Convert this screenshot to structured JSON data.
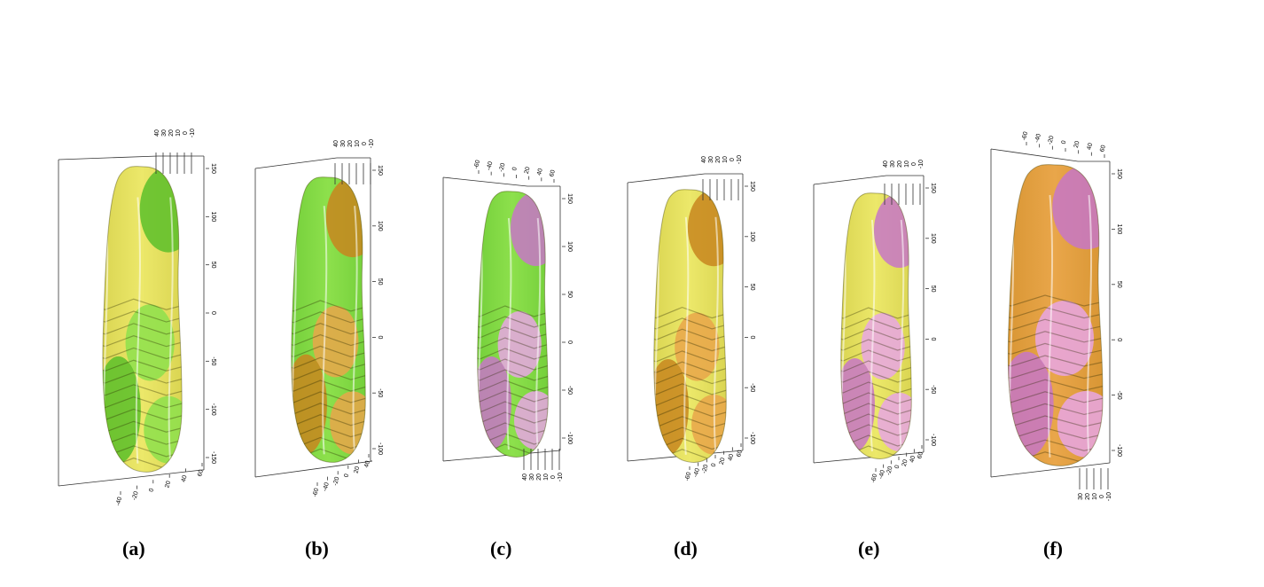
{
  "colors": {
    "yellow": "#c8c23a",
    "yellow_light": "#ece86a",
    "green": "#5cbf2a",
    "green_light": "#8de04c",
    "orange": "#c8861e",
    "orange_light": "#e9a64a",
    "pink": "#c777c7",
    "pink_light": "#e7a6e4",
    "frame": "#333333"
  },
  "panels": [
    {
      "caption": "(a)",
      "base": "yellow",
      "regions": [
        "green"
      ],
      "vert_ticks": [
        "150",
        "100",
        "50",
        "0",
        "-50",
        "-100",
        "-150"
      ],
      "depth_ticks": [
        "40",
        "30",
        "20",
        "10",
        "0",
        "-10"
      ],
      "width_ticks": [
        "-40",
        "-20",
        "0",
        "20",
        "40",
        "60"
      ]
    },
    {
      "caption": "(b)",
      "base": "green",
      "regions": [
        "orange"
      ],
      "vert_ticks": [
        "150",
        "100",
        "50",
        "0",
        "-50",
        "-100"
      ],
      "depth_ticks": [
        "40",
        "30",
        "20",
        "10",
        "0",
        "-10"
      ],
      "width_ticks": [
        "-60",
        "-40",
        "-20",
        "0",
        "20",
        "40"
      ]
    },
    {
      "caption": "(c)",
      "base": "green",
      "regions": [
        "pink"
      ],
      "vert_ticks": [
        "150",
        "100",
        "50",
        "0",
        "-50",
        "-100"
      ],
      "depth_ticks": [
        "40",
        "30",
        "20",
        "10",
        "0",
        "-10"
      ],
      "width_ticks": [
        "-60",
        "-40",
        "-20",
        "0",
        "20",
        "40",
        "60"
      ]
    },
    {
      "caption": "(d)",
      "base": "yellow",
      "regions": [
        "orange"
      ],
      "vert_ticks": [
        "150",
        "100",
        "50",
        "0",
        "-50",
        "-100"
      ],
      "depth_ticks": [
        "40",
        "30",
        "20",
        "10",
        "0",
        "-10"
      ],
      "width_ticks": [
        "-60",
        "-40",
        "-20",
        "0",
        "20",
        "40",
        "60"
      ]
    },
    {
      "caption": "(e)",
      "base": "yellow",
      "regions": [
        "pink"
      ],
      "vert_ticks": [
        "150",
        "100",
        "50",
        "0",
        "-50",
        "-100"
      ],
      "depth_ticks": [
        "40",
        "30",
        "20",
        "10",
        "0",
        "-10"
      ],
      "width_ticks": [
        "-60",
        "-40",
        "-20",
        "0",
        "20",
        "40",
        "60"
      ]
    },
    {
      "caption": "(f)",
      "base": "orange",
      "regions": [
        "pink"
      ],
      "vert_ticks": [
        "150",
        "100",
        "50",
        "0",
        "-50",
        "-100"
      ],
      "depth_ticks": [
        "30",
        "20",
        "10",
        "0",
        "-10"
      ],
      "width_ticks": [
        "-60",
        "-40",
        "-20",
        "0",
        "20",
        "40",
        "60"
      ]
    }
  ]
}
